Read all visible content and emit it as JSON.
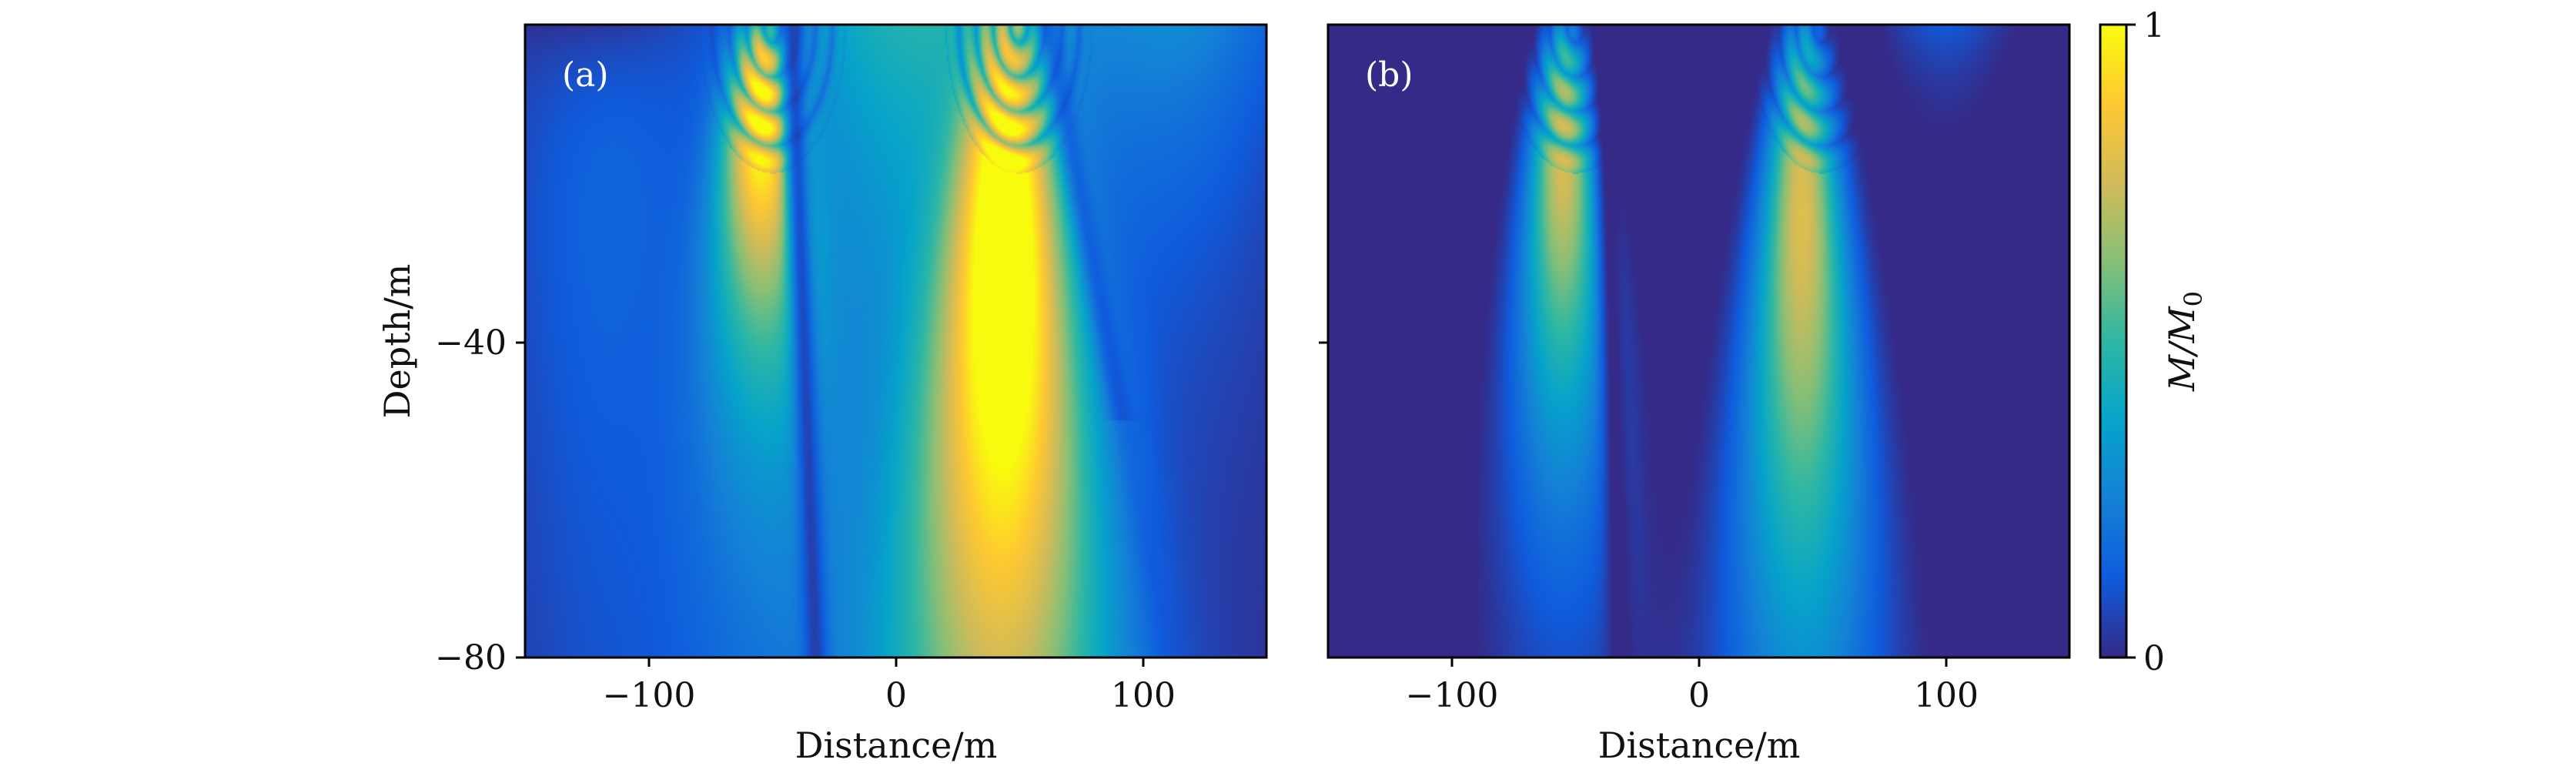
{
  "chart_data": [
    {
      "type": "heatmap",
      "panel_label": "(a)",
      "xlabel": "Distance/m",
      "ylabel": "Depth/m",
      "xlim": [
        -150,
        150
      ],
      "ylim": [
        -80,
        0
      ],
      "xticks": [
        -100,
        0,
        100
      ],
      "xtick_labels": [
        "−100",
        "0",
        "100"
      ],
      "yticks": [
        -40,
        -80
      ],
      "ytick_labels": [
        "−40",
        "−80"
      ],
      "sources_x": [
        -50,
        50
      ],
      "field_range": [
        0,
        1
      ]
    },
    {
      "type": "heatmap",
      "panel_label": "(b)",
      "xlabel": "Distance/m",
      "ylabel": "",
      "xlim": [
        -150,
        150
      ],
      "ylim": [
        -80,
        0
      ],
      "xticks": [
        -100,
        0,
        100
      ],
      "xtick_labels": [
        "−100",
        "0",
        "100"
      ],
      "yticks": [
        -40,
        -80
      ],
      "ytick_labels": [
        "",
        ""
      ],
      "sources_x": [
        -50,
        50
      ],
      "field_range": [
        0,
        1
      ]
    }
  ],
  "colorbar": {
    "label": "M/M",
    "label_subscript": "0",
    "min_label": "0",
    "max_label": "1",
    "colormap": "parula",
    "colors": [
      "#352a87",
      "#0f5cdd",
      "#1481d6",
      "#06a4ca",
      "#2eb7a4",
      "#87bf77",
      "#d1bb59",
      "#fec832",
      "#f9fb0e"
    ]
  }
}
